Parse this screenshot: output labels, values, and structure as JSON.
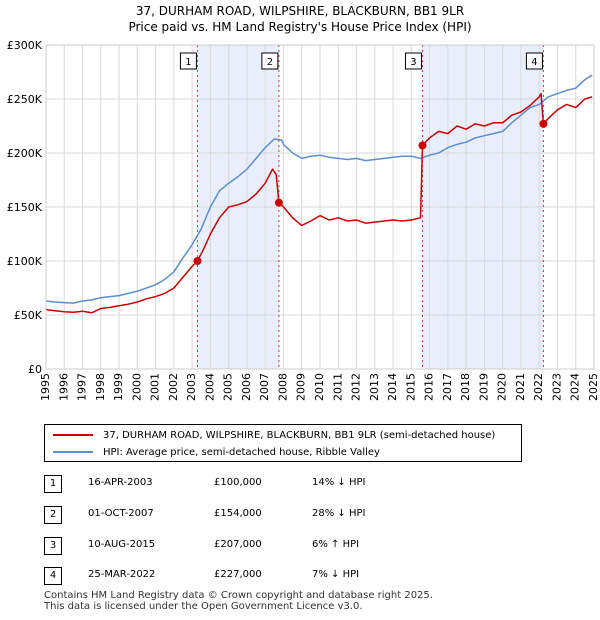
{
  "title_line1": "37, DURHAM ROAD, WILPSHIRE, BLACKBURN, BB1 9LR",
  "title_line2": "Price paid vs. HM Land Registry's House Price Index (HPI)",
  "colors": {
    "property": "#cc0000",
    "hpi": "#5b8fd0",
    "shade": "#e8eefb",
    "grid": "#d9d9d9"
  },
  "chart_data": {
    "type": "line",
    "title": "Price paid vs. HM Land Registry's House Price Index (HPI)",
    "xlim": [
      1995,
      2025
    ],
    "ylim": [
      0,
      300000
    ],
    "x_ticks": [
      "1995",
      "1996",
      "1997",
      "1998",
      "1999",
      "2000",
      "2001",
      "2002",
      "2003",
      "2004",
      "2005",
      "2006",
      "2007",
      "2008",
      "2009",
      "2010",
      "2011",
      "2012",
      "2013",
      "2014",
      "2015",
      "2016",
      "2017",
      "2018",
      "2019",
      "2020",
      "2021",
      "2022",
      "2023",
      "2024",
      "2025"
    ],
    "y_ticks": [
      {
        "value": 0,
        "label": "£0"
      },
      {
        "value": 50000,
        "label": "£50K"
      },
      {
        "value": 100000,
        "label": "£100K"
      },
      {
        "value": 150000,
        "label": "£150K"
      },
      {
        "value": 200000,
        "label": "£200K"
      },
      {
        "value": 250000,
        "label": "£250K"
      },
      {
        "value": 300000,
        "label": "£300K"
      }
    ],
    "shaded_ranges": [
      [
        2003.29,
        2007.75
      ],
      [
        2015.61,
        2022.23
      ]
    ],
    "series": [
      {
        "name": "37, DURHAM ROAD, WILPSHIRE, BLACKBURN, BB1 9LR (semi-detached house)",
        "color": "#cc0000",
        "points": [
          [
            1995,
            55000
          ],
          [
            1995.5,
            54000
          ],
          [
            1996,
            53000
          ],
          [
            1996.5,
            52500
          ],
          [
            1997,
            53500
          ],
          [
            1997.5,
            52000
          ],
          [
            1998,
            56000
          ],
          [
            1998.5,
            57000
          ],
          [
            1999,
            58500
          ],
          [
            1999.5,
            60000
          ],
          [
            2000,
            62000
          ],
          [
            2000.5,
            65000
          ],
          [
            2001,
            67000
          ],
          [
            2001.5,
            70000
          ],
          [
            2002,
            75000
          ],
          [
            2002.5,
            85000
          ],
          [
            2003,
            95000
          ],
          [
            2003.29,
            100000
          ],
          [
            2003.6,
            110000
          ],
          [
            2004,
            125000
          ],
          [
            2004.5,
            140000
          ],
          [
            2005,
            150000
          ],
          [
            2005.5,
            152000
          ],
          [
            2006,
            155000
          ],
          [
            2006.5,
            162000
          ],
          [
            2007,
            172000
          ],
          [
            2007.4,
            185000
          ],
          [
            2007.6,
            180000
          ],
          [
            2007.75,
            154000
          ],
          [
            2008,
            150000
          ],
          [
            2008.5,
            140000
          ],
          [
            2009,
            133000
          ],
          [
            2009.5,
            137000
          ],
          [
            2010,
            142000
          ],
          [
            2010.5,
            138000
          ],
          [
            2011,
            140000
          ],
          [
            2011.5,
            137000
          ],
          [
            2012,
            138000
          ],
          [
            2012.5,
            135000
          ],
          [
            2013,
            136000
          ],
          [
            2013.5,
            137000
          ],
          [
            2014,
            138000
          ],
          [
            2014.5,
            137000
          ],
          [
            2015,
            138000
          ],
          [
            2015.5,
            140000
          ],
          [
            2015.61,
            207000
          ],
          [
            2016,
            214000
          ],
          [
            2016.5,
            220000
          ],
          [
            2017,
            218000
          ],
          [
            2017.5,
            225000
          ],
          [
            2018,
            222000
          ],
          [
            2018.5,
            227000
          ],
          [
            2019,
            225000
          ],
          [
            2019.5,
            228000
          ],
          [
            2020,
            228000
          ],
          [
            2020.5,
            235000
          ],
          [
            2021,
            238000
          ],
          [
            2021.5,
            244000
          ],
          [
            2022,
            252000
          ],
          [
            2022.1,
            255000
          ],
          [
            2022.23,
            227000
          ],
          [
            2022.5,
            232000
          ],
          [
            2023,
            240000
          ],
          [
            2023.5,
            245000
          ],
          [
            2024,
            242000
          ],
          [
            2024.5,
            250000
          ],
          [
            2024.9,
            252000
          ]
        ]
      },
      {
        "name": "HPI: Average price, semi-detached house, Ribble Valley",
        "color": "#5b8fd0",
        "points": [
          [
            1995,
            63000
          ],
          [
            1995.5,
            62000
          ],
          [
            1996,
            61500
          ],
          [
            1996.5,
            61000
          ],
          [
            1997,
            63000
          ],
          [
            1997.5,
            64000
          ],
          [
            1998,
            66000
          ],
          [
            1998.5,
            67000
          ],
          [
            1999,
            68000
          ],
          [
            1999.5,
            70000
          ],
          [
            2000,
            72000
          ],
          [
            2000.5,
            75000
          ],
          [
            2001,
            78000
          ],
          [
            2001.5,
            83000
          ],
          [
            2002,
            90000
          ],
          [
            2002.5,
            103000
          ],
          [
            2003,
            115000
          ],
          [
            2003.5,
            130000
          ],
          [
            2004,
            150000
          ],
          [
            2004.5,
            165000
          ],
          [
            2005,
            172000
          ],
          [
            2005.5,
            178000
          ],
          [
            2006,
            185000
          ],
          [
            2006.5,
            195000
          ],
          [
            2007,
            205000
          ],
          [
            2007.5,
            213000
          ],
          [
            2007.9,
            212000
          ],
          [
            2008,
            208000
          ],
          [
            2008.5,
            200000
          ],
          [
            2009,
            195000
          ],
          [
            2009.5,
            197000
          ],
          [
            2010,
            198000
          ],
          [
            2010.5,
            196000
          ],
          [
            2011,
            195000
          ],
          [
            2011.5,
            194000
          ],
          [
            2012,
            195000
          ],
          [
            2012.5,
            193000
          ],
          [
            2013,
            194000
          ],
          [
            2013.5,
            195000
          ],
          [
            2014,
            196000
          ],
          [
            2014.5,
            197000
          ],
          [
            2015,
            197000
          ],
          [
            2015.5,
            195000
          ],
          [
            2016,
            198000
          ],
          [
            2016.5,
            200000
          ],
          [
            2017,
            205000
          ],
          [
            2017.5,
            208000
          ],
          [
            2018,
            210000
          ],
          [
            2018.5,
            214000
          ],
          [
            2019,
            216000
          ],
          [
            2019.5,
            218000
          ],
          [
            2020,
            220000
          ],
          [
            2020.5,
            228000
          ],
          [
            2021,
            235000
          ],
          [
            2021.5,
            242000
          ],
          [
            2022,
            245000
          ],
          [
            2022.5,
            252000
          ],
          [
            2023,
            255000
          ],
          [
            2023.5,
            258000
          ],
          [
            2024,
            260000
          ],
          [
            2024.5,
            268000
          ],
          [
            2024.9,
            272000
          ]
        ]
      }
    ],
    "markers": [
      {
        "label": "1",
        "x": 2003.29,
        "y": 100000
      },
      {
        "label": "2",
        "x": 2007.75,
        "y": 154000
      },
      {
        "label": "3",
        "x": 2015.61,
        "y": 207000
      },
      {
        "label": "4",
        "x": 2022.23,
        "y": 227000
      }
    ]
  },
  "legend": {
    "property": "37, DURHAM ROAD, WILPSHIRE, BLACKBURN, BB1 9LR (semi-detached house)",
    "hpi": "HPI: Average price, semi-detached house, Ribble Valley"
  },
  "transactions": [
    {
      "num": "1",
      "date": "16-APR-2003",
      "price": "£100,000",
      "hpi": "14% ↓ HPI"
    },
    {
      "num": "2",
      "date": "01-OCT-2007",
      "price": "£154,000",
      "hpi": "28% ↓ HPI"
    },
    {
      "num": "3",
      "date": "10-AUG-2015",
      "price": "£207,000",
      "hpi": "6% ↑ HPI"
    },
    {
      "num": "4",
      "date": "25-MAR-2022",
      "price": "£227,000",
      "hpi": "7% ↓ HPI"
    }
  ],
  "footer_line1": "Contains HM Land Registry data © Crown copyright and database right 2025.",
  "footer_line2": "This data is licensed under the Open Government Licence v3.0."
}
